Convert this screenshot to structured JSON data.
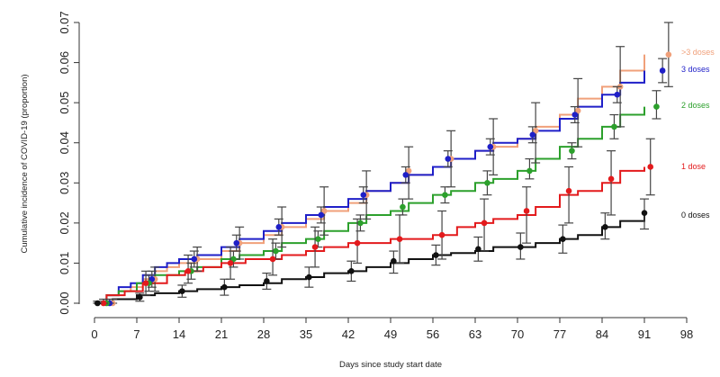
{
  "chart_data": {
    "type": "line",
    "title": "",
    "xlabel": "Days since study start date",
    "ylabel": "Cumulative incidence of COVID-19 (proportion)",
    "xlim": [
      0,
      98
    ],
    "ylim": [
      0,
      0.07
    ],
    "xticks": [
      0,
      7,
      14,
      21,
      28,
      35,
      42,
      49,
      56,
      63,
      70,
      77,
      84,
      91,
      98
    ],
    "yticks": [
      "0.00",
      "0.01",
      "0.02",
      "0.03",
      "0.04",
      "0.05",
      "0.06",
      "0.07"
    ],
    "grid": false,
    "legend_placement": "right",
    "series": [
      {
        "name": ">3 doses",
        "color": "#f0a07a",
        "step_x": [
          0,
          2,
          4,
          6,
          8,
          10,
          12,
          14,
          17,
          21,
          24,
          28,
          31,
          35,
          38,
          42,
          45,
          49,
          52,
          56,
          59,
          63,
          66,
          70,
          73,
          77,
          80,
          84,
          87,
          91
        ],
        "step_y": [
          0.0,
          0.002,
          0.003,
          0.004,
          0.006,
          0.008,
          0.009,
          0.01,
          0.011,
          0.013,
          0.015,
          0.017,
          0.019,
          0.021,
          0.023,
          0.025,
          0.028,
          0.03,
          0.032,
          0.034,
          0.036,
          0.038,
          0.039,
          0.041,
          0.044,
          0.047,
          0.051,
          0.054,
          0.058,
          0.062
        ],
        "points_x": [
          3,
          10,
          17,
          24,
          31,
          38,
          45,
          52,
          59,
          66,
          73,
          80,
          87,
          95
        ],
        "points_y": [
          0.0,
          0.006,
          0.011,
          0.015,
          0.019,
          0.023,
          0.027,
          0.033,
          0.036,
          0.039,
          0.043,
          0.048,
          0.054,
          0.062
        ],
        "ci_low": [
          0.0,
          0.003,
          0.008,
          0.011,
          0.014,
          0.017,
          0.021,
          0.026,
          0.029,
          0.032,
          0.035,
          0.039,
          0.044,
          0.054
        ],
        "ci_high": [
          0.001,
          0.009,
          0.014,
          0.019,
          0.024,
          0.029,
          0.033,
          0.039,
          0.043,
          0.046,
          0.05,
          0.056,
          0.064,
          0.07
        ]
      },
      {
        "name": "3 doses",
        "color": "#1f1fc8",
        "step_x": [
          0,
          2,
          4,
          6,
          8,
          10,
          12,
          14,
          17,
          21,
          24,
          28,
          31,
          35,
          38,
          42,
          45,
          49,
          52,
          56,
          59,
          63,
          66,
          70,
          73,
          77,
          80,
          84,
          87,
          91
        ],
        "step_y": [
          0.0,
          0.002,
          0.004,
          0.005,
          0.007,
          0.009,
          0.01,
          0.011,
          0.012,
          0.014,
          0.016,
          0.018,
          0.02,
          0.022,
          0.024,
          0.026,
          0.028,
          0.03,
          0.032,
          0.034,
          0.036,
          0.038,
          0.04,
          0.041,
          0.043,
          0.046,
          0.049,
          0.052,
          0.055,
          0.058
        ],
        "points_x": [
          2.5,
          9.5,
          16.5,
          23.5,
          30.5,
          37.5,
          44.5,
          51.5,
          58.5,
          65.5,
          72.5,
          79.5,
          86.5,
          94
        ],
        "points_y": [
          0.0,
          0.006,
          0.011,
          0.015,
          0.019,
          0.022,
          0.027,
          0.032,
          0.036,
          0.039,
          0.042,
          0.047,
          0.052,
          0.058
        ],
        "ci_low": [
          0.0,
          0.004,
          0.009,
          0.013,
          0.017,
          0.02,
          0.025,
          0.03,
          0.034,
          0.037,
          0.04,
          0.045,
          0.05,
          0.055
        ],
        "ci_high": [
          0.001,
          0.008,
          0.013,
          0.017,
          0.021,
          0.024,
          0.029,
          0.034,
          0.038,
          0.041,
          0.044,
          0.049,
          0.054,
          0.061
        ]
      },
      {
        "name": "2 doses",
        "color": "#2ca02c",
        "step_x": [
          0,
          2,
          4,
          7,
          10,
          14,
          17,
          21,
          24,
          28,
          31,
          35,
          38,
          42,
          45,
          49,
          52,
          56,
          59,
          63,
          66,
          70,
          73,
          77,
          80,
          84,
          87,
          91
        ],
        "step_y": [
          0.0,
          0.002,
          0.003,
          0.005,
          0.007,
          0.008,
          0.009,
          0.011,
          0.012,
          0.013,
          0.015,
          0.016,
          0.018,
          0.02,
          0.022,
          0.023,
          0.025,
          0.027,
          0.028,
          0.03,
          0.031,
          0.033,
          0.036,
          0.039,
          0.041,
          0.044,
          0.047,
          0.049
        ],
        "points_x": [
          2,
          9,
          16,
          23,
          30,
          37,
          44,
          51,
          58,
          65,
          72,
          79,
          86,
          93
        ],
        "points_y": [
          0.0,
          0.005,
          0.008,
          0.011,
          0.013,
          0.016,
          0.02,
          0.024,
          0.027,
          0.03,
          0.033,
          0.038,
          0.044,
          0.049
        ],
        "ci_low": [
          0.0,
          0.003,
          0.006,
          0.009,
          0.011,
          0.014,
          0.018,
          0.022,
          0.025,
          0.027,
          0.031,
          0.036,
          0.041,
          0.046
        ],
        "ci_high": [
          0.001,
          0.007,
          0.01,
          0.013,
          0.015,
          0.018,
          0.022,
          0.026,
          0.029,
          0.033,
          0.036,
          0.04,
          0.047,
          0.053
        ]
      },
      {
        "name": "1 dose",
        "color": "#e31a1c",
        "step_x": [
          0,
          2,
          5,
          8,
          12,
          15,
          18,
          21,
          25,
          28,
          31,
          35,
          38,
          42,
          46,
          49,
          53,
          56,
          60,
          63,
          66,
          70,
          73,
          77,
          80,
          84,
          87,
          91
        ],
        "step_y": [
          0.0,
          0.002,
          0.003,
          0.005,
          0.007,
          0.008,
          0.009,
          0.01,
          0.011,
          0.011,
          0.012,
          0.013,
          0.014,
          0.015,
          0.015,
          0.016,
          0.016,
          0.017,
          0.019,
          0.02,
          0.021,
          0.022,
          0.024,
          0.027,
          0.028,
          0.03,
          0.033,
          0.034
        ],
        "points_x": [
          1.5,
          8.5,
          15.5,
          22.5,
          29.5,
          36.5,
          43.5,
          50.5,
          57.5,
          64.5,
          71.5,
          78.5,
          85.5,
          92
        ],
        "points_y": [
          0.0,
          0.005,
          0.008,
          0.01,
          0.011,
          0.014,
          0.015,
          0.016,
          0.017,
          0.02,
          0.023,
          0.028,
          0.031,
          0.034
        ],
        "ci_low": [
          0.0,
          0.002,
          0.005,
          0.006,
          0.007,
          0.009,
          0.01,
          0.01,
          0.011,
          0.013,
          0.015,
          0.02,
          0.022,
          0.027
        ],
        "ci_high": [
          0.001,
          0.008,
          0.012,
          0.014,
          0.016,
          0.019,
          0.021,
          0.022,
          0.023,
          0.026,
          0.029,
          0.034,
          0.038,
          0.041
        ]
      },
      {
        "name": "0 doses",
        "color": "#111111",
        "step_x": [
          0,
          3,
          7,
          10,
          14,
          17,
          21,
          24,
          28,
          31,
          35,
          38,
          42,
          45,
          49,
          52,
          56,
          59,
          63,
          66,
          70,
          73,
          77,
          80,
          84,
          87,
          91
        ],
        "step_y": [
          0.0,
          0.001,
          0.002,
          0.0025,
          0.003,
          0.0035,
          0.004,
          0.0045,
          0.005,
          0.006,
          0.0065,
          0.0075,
          0.008,
          0.009,
          0.01,
          0.011,
          0.012,
          0.0125,
          0.013,
          0.014,
          0.014,
          0.015,
          0.016,
          0.017,
          0.019,
          0.0205,
          0.022
        ],
        "points_x": [
          0.5,
          7.5,
          14.5,
          21.5,
          28.5,
          35.5,
          42.5,
          49.5,
          56.5,
          63.5,
          70.5,
          77.5,
          84.5,
          91
        ],
        "points_y": [
          0.0,
          0.0015,
          0.003,
          0.004,
          0.0055,
          0.0065,
          0.008,
          0.0105,
          0.012,
          0.0135,
          0.014,
          0.016,
          0.019,
          0.0225
        ],
        "ci_low": [
          0.0,
          0.0005,
          0.0015,
          0.002,
          0.0035,
          0.004,
          0.0055,
          0.0075,
          0.0095,
          0.0105,
          0.011,
          0.0125,
          0.016,
          0.0185
        ],
        "ci_high": [
          0.0005,
          0.0025,
          0.0045,
          0.006,
          0.0075,
          0.009,
          0.0105,
          0.013,
          0.0145,
          0.0165,
          0.0175,
          0.0195,
          0.0225,
          0.026
        ]
      }
    ]
  }
}
